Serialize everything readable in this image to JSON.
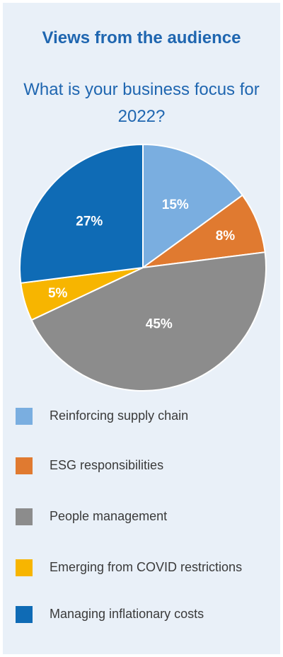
{
  "header": {
    "title": "Views from the audience",
    "subtitle": "What is your business focus for 2022?"
  },
  "chart_data": {
    "type": "pie",
    "title": "What is your business focus for 2022?",
    "slices": [
      {
        "label": "Reinforcing supply chain",
        "value": 15,
        "display": "15%",
        "color": "#7aaee0"
      },
      {
        "label": "ESG responsibilities",
        "value": 8,
        "display": "8%",
        "color": "#e07a30"
      },
      {
        "label": "People management",
        "value": 45,
        "display": "45%",
        "color": "#8c8c8c"
      },
      {
        "label": "Emerging from COVID restrictions",
        "value": 5,
        "display": "5%",
        "color": "#f7b500"
      },
      {
        "label": "Managing inflationary costs",
        "value": 27,
        "display": "27%",
        "color": "#0f6bb5"
      }
    ],
    "legend_position": "bottom"
  }
}
